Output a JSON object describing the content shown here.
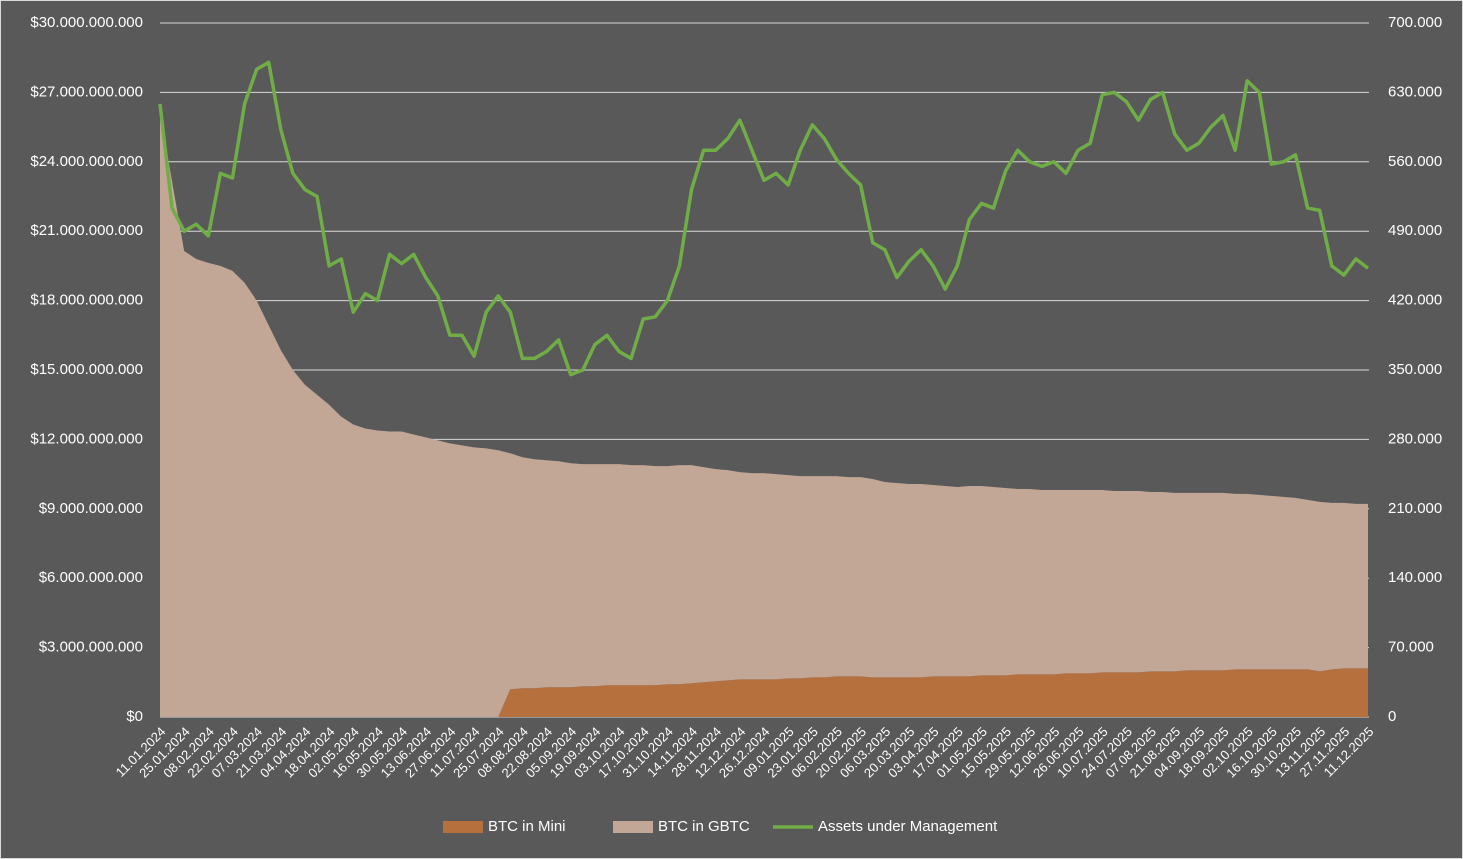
{
  "chart_data": {
    "type": "combo",
    "stacked": true,
    "grid": true,
    "legend": "bottom",
    "categories": [
      "11.01.2024",
      null,
      "25.01.2024",
      null,
      "08.02.2024",
      null,
      "22.02.2024",
      null,
      "07.03.2024",
      null,
      "21.03.2024",
      null,
      "04.04.2024",
      null,
      "18.04.2024",
      null,
      "02.05.2024",
      null,
      "16.05.2024",
      null,
      "30.05.2024",
      null,
      "13.06.2024",
      null,
      "27.06.2024",
      null,
      "11.07.2024",
      null,
      "25.07.2024",
      null,
      "08.08.2024",
      null,
      "22.08.2024",
      null,
      "05.09.2024",
      null,
      "19.09.2024",
      null,
      "03.10.2024",
      null,
      "17.10.2024",
      null,
      "31.10.2024",
      null,
      "14.11.2024",
      null,
      "28.11.2024",
      null,
      "12.12.2024",
      null,
      "26.12.2024",
      null,
      "09.01.2025",
      null,
      "23.01.2025",
      null,
      "06.02.2025",
      null,
      "20.02.2025",
      null,
      "06.03.2025",
      null,
      "20.03.2025",
      null,
      "03.04.2025",
      null,
      "17.04.2025",
      null,
      "01.05.2025",
      null,
      "15.05.2025",
      null,
      "29.05.2025",
      null,
      "12.06.2025",
      null,
      "26.06.2025",
      null,
      "10.07.2025",
      null,
      "24.07.2025",
      null,
      "07.08.2025",
      null,
      "21.08.2025",
      null,
      "04.09.2025",
      null,
      "18.09.2025",
      null,
      "02.10.2025",
      null,
      "16.10.2025",
      null,
      "30.10.2025",
      null,
      "13.11.2025",
      null,
      "27.11.2025",
      null,
      "11.12.2025"
    ],
    "ylim": [
      0,
      30000000000
    ],
    "yticks": [
      {
        "value": 0,
        "label": "$0"
      },
      {
        "value": 3000000000,
        "label": "$3.000.000.000"
      },
      {
        "value": 6000000000,
        "label": "$6.000.000.000"
      },
      {
        "value": 9000000000,
        "label": "$9.000.000.000"
      },
      {
        "value": 12000000000,
        "label": "$12.000.000.000"
      },
      {
        "value": 15000000000,
        "label": "$15.000.000.000"
      },
      {
        "value": 18000000000,
        "label": "$18.000.000.000"
      },
      {
        "value": 21000000000,
        "label": "$21.000.000.000"
      },
      {
        "value": 24000000000,
        "label": "$24.000.000.000"
      },
      {
        "value": 27000000000,
        "label": "$27.000.000.000"
      },
      {
        "value": 30000000000,
        "label": "$30.000.000.000"
      }
    ],
    "y2lim": [
      0,
      700000
    ],
    "y2ticks": [
      0,
      {
        "value": 70000,
        "label": "70.000"
      },
      {
        "value": 140000,
        "label": "140.000"
      },
      {
        "value": 210000,
        "label": "210.000"
      },
      {
        "value": 280000,
        "label": "280.000"
      },
      {
        "value": 350000,
        "label": "350.000"
      },
      {
        "value": 420000,
        "label": "420.000"
      },
      {
        "value": 490000,
        "label": "490.000"
      },
      {
        "value": 560000,
        "label": "560.000"
      },
      {
        "value": 630000,
        "label": "630.000"
      },
      {
        "value": 700000,
        "label": "700.000"
      }
    ],
    "series": [
      {
        "name": "BTC in Mini",
        "type": "area",
        "axis": "y2",
        "color": "#b5703e",
        "values": [
          0,
          0,
          0,
          0,
          0,
          0,
          0,
          0,
          0,
          0,
          0,
          0,
          0,
          0,
          0,
          0,
          0,
          0,
          0,
          0,
          0,
          0,
          0,
          0,
          0,
          0,
          0,
          0,
          0,
          28000,
          29000,
          29000,
          30000,
          30000,
          30000,
          31000,
          31000,
          32000,
          32000,
          32000,
          32000,
          32000,
          33000,
          33000,
          34000,
          35000,
          36000,
          37000,
          38000,
          38000,
          38000,
          38000,
          39000,
          39000,
          40000,
          40000,
          41000,
          41000,
          41000,
          40000,
          40000,
          40000,
          40000,
          40000,
          41000,
          41000,
          41000,
          41000,
          42000,
          42000,
          42000,
          43000,
          43000,
          43000,
          43000,
          44000,
          44000,
          44000,
          45000,
          45000,
          45000,
          45000,
          46000,
          46000,
          46000,
          47000,
          47000,
          47000,
          47000,
          48000,
          48000,
          48000,
          48000,
          48000,
          48000,
          48000,
          46000,
          48000,
          49000,
          49000,
          49000
        ]
      },
      {
        "name": "BTC in GBTC",
        "type": "area",
        "axis": "y2",
        "color": "#c2a696",
        "values": [
          610000,
          540000,
          470000,
          462000,
          458000,
          455000,
          450000,
          438000,
          420000,
          395000,
          370000,
          350000,
          335000,
          325000,
          315000,
          303000,
          295000,
          291000,
          289000,
          288000,
          288000,
          285000,
          282000,
          279000,
          276000,
          274000,
          272000,
          271000,
          269000,
          238000,
          233000,
          231000,
          229000,
          228000,
          226000,
          224000,
          224000,
          223000,
          223000,
          222000,
          222000,
          221000,
          220000,
          221000,
          220000,
          217000,
          214000,
          212000,
          209000,
          208000,
          208000,
          207000,
          205000,
          204000,
          203000,
          203000,
          202000,
          201000,
          201000,
          200000,
          197000,
          196000,
          195000,
          195000,
          193000,
          192000,
          191000,
          192000,
          191000,
          190000,
          189000,
          187000,
          187000,
          186000,
          186000,
          185000,
          185000,
          185000,
          184000,
          183000,
          183000,
          183000,
          181000,
          181000,
          180000,
          179000,
          179000,
          179000,
          179000,
          177000,
          177000,
          176000,
          175000,
          174000,
          173000,
          171000,
          171000,
          168000,
          167000,
          166000,
          166000
        ]
      },
      {
        "name": "Assets under Management",
        "type": "line",
        "axis": "y",
        "color": "#70ad47",
        "values": [
          26500000000,
          22000000000,
          21000000000,
          21300000000,
          20800000000,
          23500000000,
          23300000000,
          26500000000,
          28000000000,
          28300000000,
          25400000000,
          23500000000,
          22800000000,
          22500000000,
          19500000000,
          19800000000,
          17500000000,
          18300000000,
          18000000000,
          20000000000,
          19600000000,
          20000000000,
          19000000000,
          18200000000,
          16500000000,
          16500000000,
          15600000000,
          17500000000,
          18200000000,
          17500000000,
          15500000000,
          15500000000,
          15800000000,
          16300000000,
          14800000000,
          15000000000,
          16100000000,
          16500000000,
          15800000000,
          15500000000,
          17200000000,
          17300000000,
          18000000000,
          19500000000,
          22800000000,
          24500000000,
          24500000000,
          25000000000,
          25800000000,
          24500000000,
          23200000000,
          23500000000,
          23000000000,
          24500000000,
          25600000000,
          25000000000,
          24100000000,
          23500000000,
          23000000000,
          20500000000,
          20200000000,
          19000000000,
          19700000000,
          20200000000,
          19500000000,
          18500000000,
          19500000000,
          21500000000,
          22200000000,
          22000000000,
          23600000000,
          24500000000,
          24000000000,
          23800000000,
          24000000000,
          23500000000,
          24500000000,
          24800000000,
          26900000000,
          27000000000,
          26600000000,
          25800000000,
          26700000000,
          27000000000,
          25200000000,
          24500000000,
          24800000000,
          25500000000,
          26000000000,
          24500000000,
          27500000000,
          27000000000,
          23900000000,
          24000000000,
          24300000000,
          22000000000,
          21900000000,
          19500000000,
          19100000000,
          19800000000,
          19400000000
        ]
      }
    ]
  }
}
